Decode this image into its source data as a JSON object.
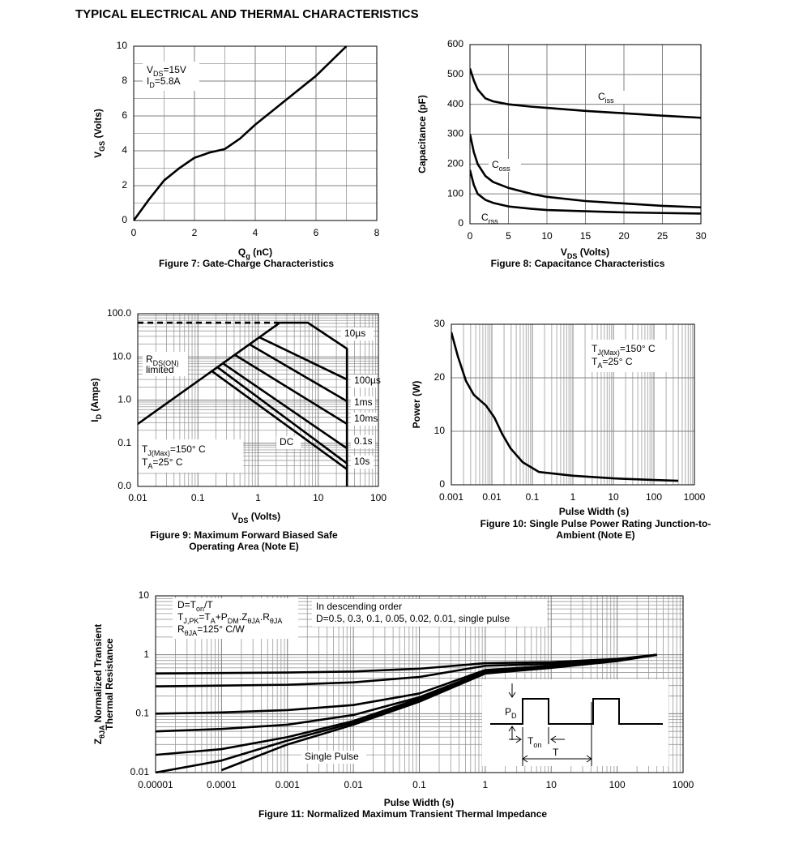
{
  "title": "TYPICAL ELECTRICAL AND THERMAL CHARACTERISTICS",
  "chart_data": [
    {
      "type": "line",
      "title": [
        "Figure 7: Gate-Charge Characteristics"
      ],
      "xlabel": [
        [
          "Q",
          "g",
          " (nC)"
        ]
      ],
      "ylabel": [
        [
          "V",
          "GS",
          " (Volts)"
        ]
      ],
      "xscale": "linear",
      "yscale": "linear",
      "xlim": [
        0,
        8
      ],
      "xticks": [
        0,
        2,
        4,
        6,
        8
      ],
      "ylim": [
        0,
        10
      ],
      "yticks": [
        0,
        2,
        4,
        6,
        8,
        10
      ],
      "grid": true,
      "minor_grid": [
        "x",
        "y"
      ],
      "x": [
        0,
        0.5,
        1,
        1.5,
        2,
        2.5,
        3,
        3.5,
        4,
        5,
        6,
        7
      ],
      "series": [
        {
          "color": "#000000",
          "values": [
            0,
            1.2,
            2.3,
            3.0,
            3.6,
            3.9,
            4.1,
            4.7,
            5.5,
            6.9,
            8.3,
            10
          ]
        }
      ],
      "annotations": [
        [
          [
            "V",
            "DS",
            "=15V"
          ],
          [
            "I",
            "D",
            "=5.8A"
          ]
        ]
      ]
    },
    {
      "type": "line",
      "title": [
        "Figure 8: Capacitance Characteristics"
      ],
      "xlabel": [
        [
          "V",
          "DS",
          " (Volts)"
        ]
      ],
      "ylabel": [
        [
          "Capacitance (pF)"
        ]
      ],
      "xscale": "linear",
      "yscale": "linear",
      "xlim": [
        0,
        30
      ],
      "xticks": [
        0,
        5,
        10,
        15,
        20,
        25,
        30
      ],
      "ylim": [
        0,
        600
      ],
      "yticks": [
        0,
        100,
        200,
        300,
        400,
        500,
        600
      ],
      "grid": true,
      "minor_grid": [],
      "x": [
        0,
        0.5,
        1,
        2,
        3,
        5,
        8,
        10,
        15,
        20,
        25,
        30
      ],
      "series": [
        {
          "color": "#000000",
          "values": [
            520,
            480,
            450,
            420,
            410,
            400,
            392,
            388,
            378,
            370,
            362,
            355
          ]
        },
        {
          "color": "#000000",
          "values": [
            300,
            240,
            200,
            160,
            140,
            120,
            100,
            90,
            76,
            68,
            60,
            55
          ]
        },
        {
          "color": "#000000",
          "values": [
            180,
            130,
            100,
            80,
            70,
            58,
            50,
            46,
            42,
            38,
            36,
            34
          ]
        }
      ],
      "annotations": [
        [
          [
            "C",
            "iss"
          ]
        ],
        [
          [
            "C",
            "oss"
          ]
        ],
        [
          [
            "C",
            "rss"
          ]
        ]
      ]
    },
    {
      "type": "line",
      "title": [
        "Figure 9: Maximum Forward Biased Safe",
        "Operating Area (Note E)"
      ],
      "xlabel": [
        [
          "V",
          "DS",
          " (Volts)"
        ]
      ],
      "ylabel": [
        [
          "I",
          "D",
          " (Amps)"
        ]
      ],
      "xscale": "log",
      "yscale": "log",
      "xlim": [
        0.01,
        100
      ],
      "xticks": [
        0.01,
        0.1,
        1,
        10,
        100
      ],
      "ylim": [
        0.01,
        100
      ],
      "yticks": [
        {
          "value": 0.01,
          "label": "0.0"
        },
        {
          "value": 0.1,
          "label": "0.1"
        },
        {
          "value": 1,
          "label": "1.0"
        },
        {
          "value": 10,
          "label": "10.0"
        },
        {
          "value": 100,
          "label": "100.0"
        }
      ],
      "grid": true,
      "minor_grid": [
        "x",
        "y"
      ],
      "series": [
        {
          "color": "#000000",
          "dash": true,
          "x": [
            0.01,
            2.3
          ],
          "values": [
            62,
            62
          ]
        },
        {
          "color": "#000000",
          "x": [
            0.01,
            2.3
          ],
          "values": [
            0.28,
            62
          ]
        },
        {
          "color": "#000000",
          "x": [
            2.3,
            6.7,
            30,
            30
          ],
          "values": [
            62,
            62,
            15.5,
            0.01
          ]
        },
        {
          "color": "#000000",
          "x": [
            1.05,
            30
          ],
          "values": [
            28.5,
            3.0
          ]
        },
        {
          "color": "#000000",
          "x": [
            0.72,
            30
          ],
          "values": [
            19.5,
            0.94
          ]
        },
        {
          "color": "#000000",
          "x": [
            0.41,
            30
          ],
          "values": [
            11.2,
            0.28
          ]
        },
        {
          "color": "#000000",
          "x": [
            0.26,
            30
          ],
          "values": [
            7.1,
            0.076
          ]
        },
        {
          "color": "#000000",
          "x": [
            0.21,
            30
          ],
          "values": [
            5.8,
            0.034
          ]
        },
        {
          "color": "#000000",
          "x": [
            0.17,
            30
          ],
          "values": [
            4.7,
            0.025
          ]
        }
      ],
      "annotations": [
        [
          [
            "R",
            "DS(ON)"
          ],
          [
            "limited"
          ]
        ],
        [
          [
            "T",
            "J(Max)",
            "=150° C"
          ],
          [
            "T",
            "A",
            "=25° C"
          ]
        ],
        [
          [
            "10µs"
          ]
        ],
        [
          [
            "100µs"
          ]
        ],
        [
          [
            "1ms"
          ]
        ],
        [
          [
            "10ms"
          ]
        ],
        [
          [
            "0.1s"
          ]
        ],
        [
          [
            "10s"
          ]
        ],
        [
          [
            "DC"
          ]
        ]
      ]
    },
    {
      "type": "line",
      "title": [
        "Figure 10: Single Pulse Power Rating Junction-to-",
        "Ambient (Note E)"
      ],
      "xlabel": [
        [
          "Pulse Width (s)"
        ]
      ],
      "ylabel": [
        [
          "Power (W)"
        ]
      ],
      "xscale": "log",
      "yscale": "linear",
      "xlim": [
        0.001,
        1000
      ],
      "xticks": [
        0.001,
        0.01,
        0.1,
        1,
        10,
        100,
        1000
      ],
      "ylim": [
        0,
        30
      ],
      "yticks": [
        0,
        10,
        20,
        30
      ],
      "grid": true,
      "minor_grid": [
        "x"
      ],
      "x": [
        0.001,
        0.00145,
        0.0023,
        0.0036,
        0.0072,
        0.0115,
        0.018,
        0.029,
        0.058,
        0.145,
        1,
        10,
        100,
        400
      ],
      "series": [
        {
          "color": "#000000",
          "values": [
            28.5,
            24,
            19.4,
            16.8,
            14.8,
            12.6,
            9.5,
            6.8,
            4.2,
            2.4,
            1.7,
            1.2,
            0.9,
            0.75
          ]
        }
      ],
      "annotations": [
        [
          [
            "T",
            "J(Max)",
            "=150° C"
          ],
          [
            "T",
            "A",
            "=25° C"
          ]
        ]
      ]
    },
    {
      "type": "line",
      "title": [
        "Figure 11: Normalized Maximum Transient Thermal Impedance"
      ],
      "xlabel": [
        [
          "Pulse Width (s)"
        ]
      ],
      "ylabel": [
        [
          "Z",
          "θJA",
          " Normalized Transient"
        ],
        [
          "Thermal Resistance"
        ]
      ],
      "xscale": "log",
      "yscale": "log",
      "xlim": [
        1e-05,
        1000
      ],
      "xticks": [
        1e-05,
        0.0001,
        0.001,
        0.01,
        0.1,
        1,
        10,
        100,
        1000
      ],
      "ylim": [
        0.01,
        10
      ],
      "yticks": [
        0.01,
        0.1,
        1,
        10
      ],
      "grid": true,
      "minor_grid": [
        "x",
        "y"
      ],
      "x": [
        1e-05,
        0.0001,
        0.001,
        0.01,
        0.1,
        1,
        10,
        100,
        400
      ],
      "series": [
        {
          "color": "#000000",
          "values": [
            0.48,
            0.49,
            0.5,
            0.52,
            0.58,
            0.72,
            0.75,
            0.85,
            1.0
          ]
        },
        {
          "color": "#000000",
          "values": [
            0.29,
            0.3,
            0.31,
            0.34,
            0.42,
            0.65,
            0.7,
            0.82,
            1.0
          ]
        },
        {
          "color": "#000000",
          "values": [
            0.1,
            0.105,
            0.115,
            0.14,
            0.22,
            0.55,
            0.65,
            0.8,
            1.0
          ]
        },
        {
          "color": "#000000",
          "values": [
            0.05,
            0.055,
            0.065,
            0.095,
            0.19,
            0.52,
            0.63,
            0.8,
            1.0
          ]
        },
        {
          "color": "#000000",
          "values": [
            0.02,
            0.025,
            0.04,
            0.075,
            0.18,
            0.5,
            0.62,
            0.8,
            1.0
          ]
        },
        {
          "color": "#000000",
          "values": [
            0.01,
            0.016,
            0.035,
            0.07,
            0.17,
            0.5,
            0.62,
            0.8,
            1.0
          ]
        },
        {
          "color": "#000000",
          "values": [
            null,
            0.011,
            0.03,
            0.065,
            0.16,
            0.48,
            0.6,
            0.78,
            1.0
          ]
        }
      ],
      "annotations": [
        [
          [
            "D=T",
            "on",
            "/T"
          ],
          [
            "T",
            "J,PK",
            "=T",
            "A",
            "+P",
            "DM",
            ".Z",
            "θJA",
            ".R",
            "θJA"
          ],
          [
            "R",
            "θJA",
            "=125° C/W"
          ]
        ],
        [
          [
            "In descending order"
          ],
          [
            "D=0.5, 0.3, 0.1, 0.05, 0.02, 0.01, single pulse"
          ]
        ],
        [
          [
            "Single Pulse"
          ]
        ],
        [
          [
            "P",
            "D"
          ]
        ],
        [
          [
            "T",
            "on"
          ]
        ],
        [
          [
            "T"
          ]
        ]
      ]
    }
  ]
}
